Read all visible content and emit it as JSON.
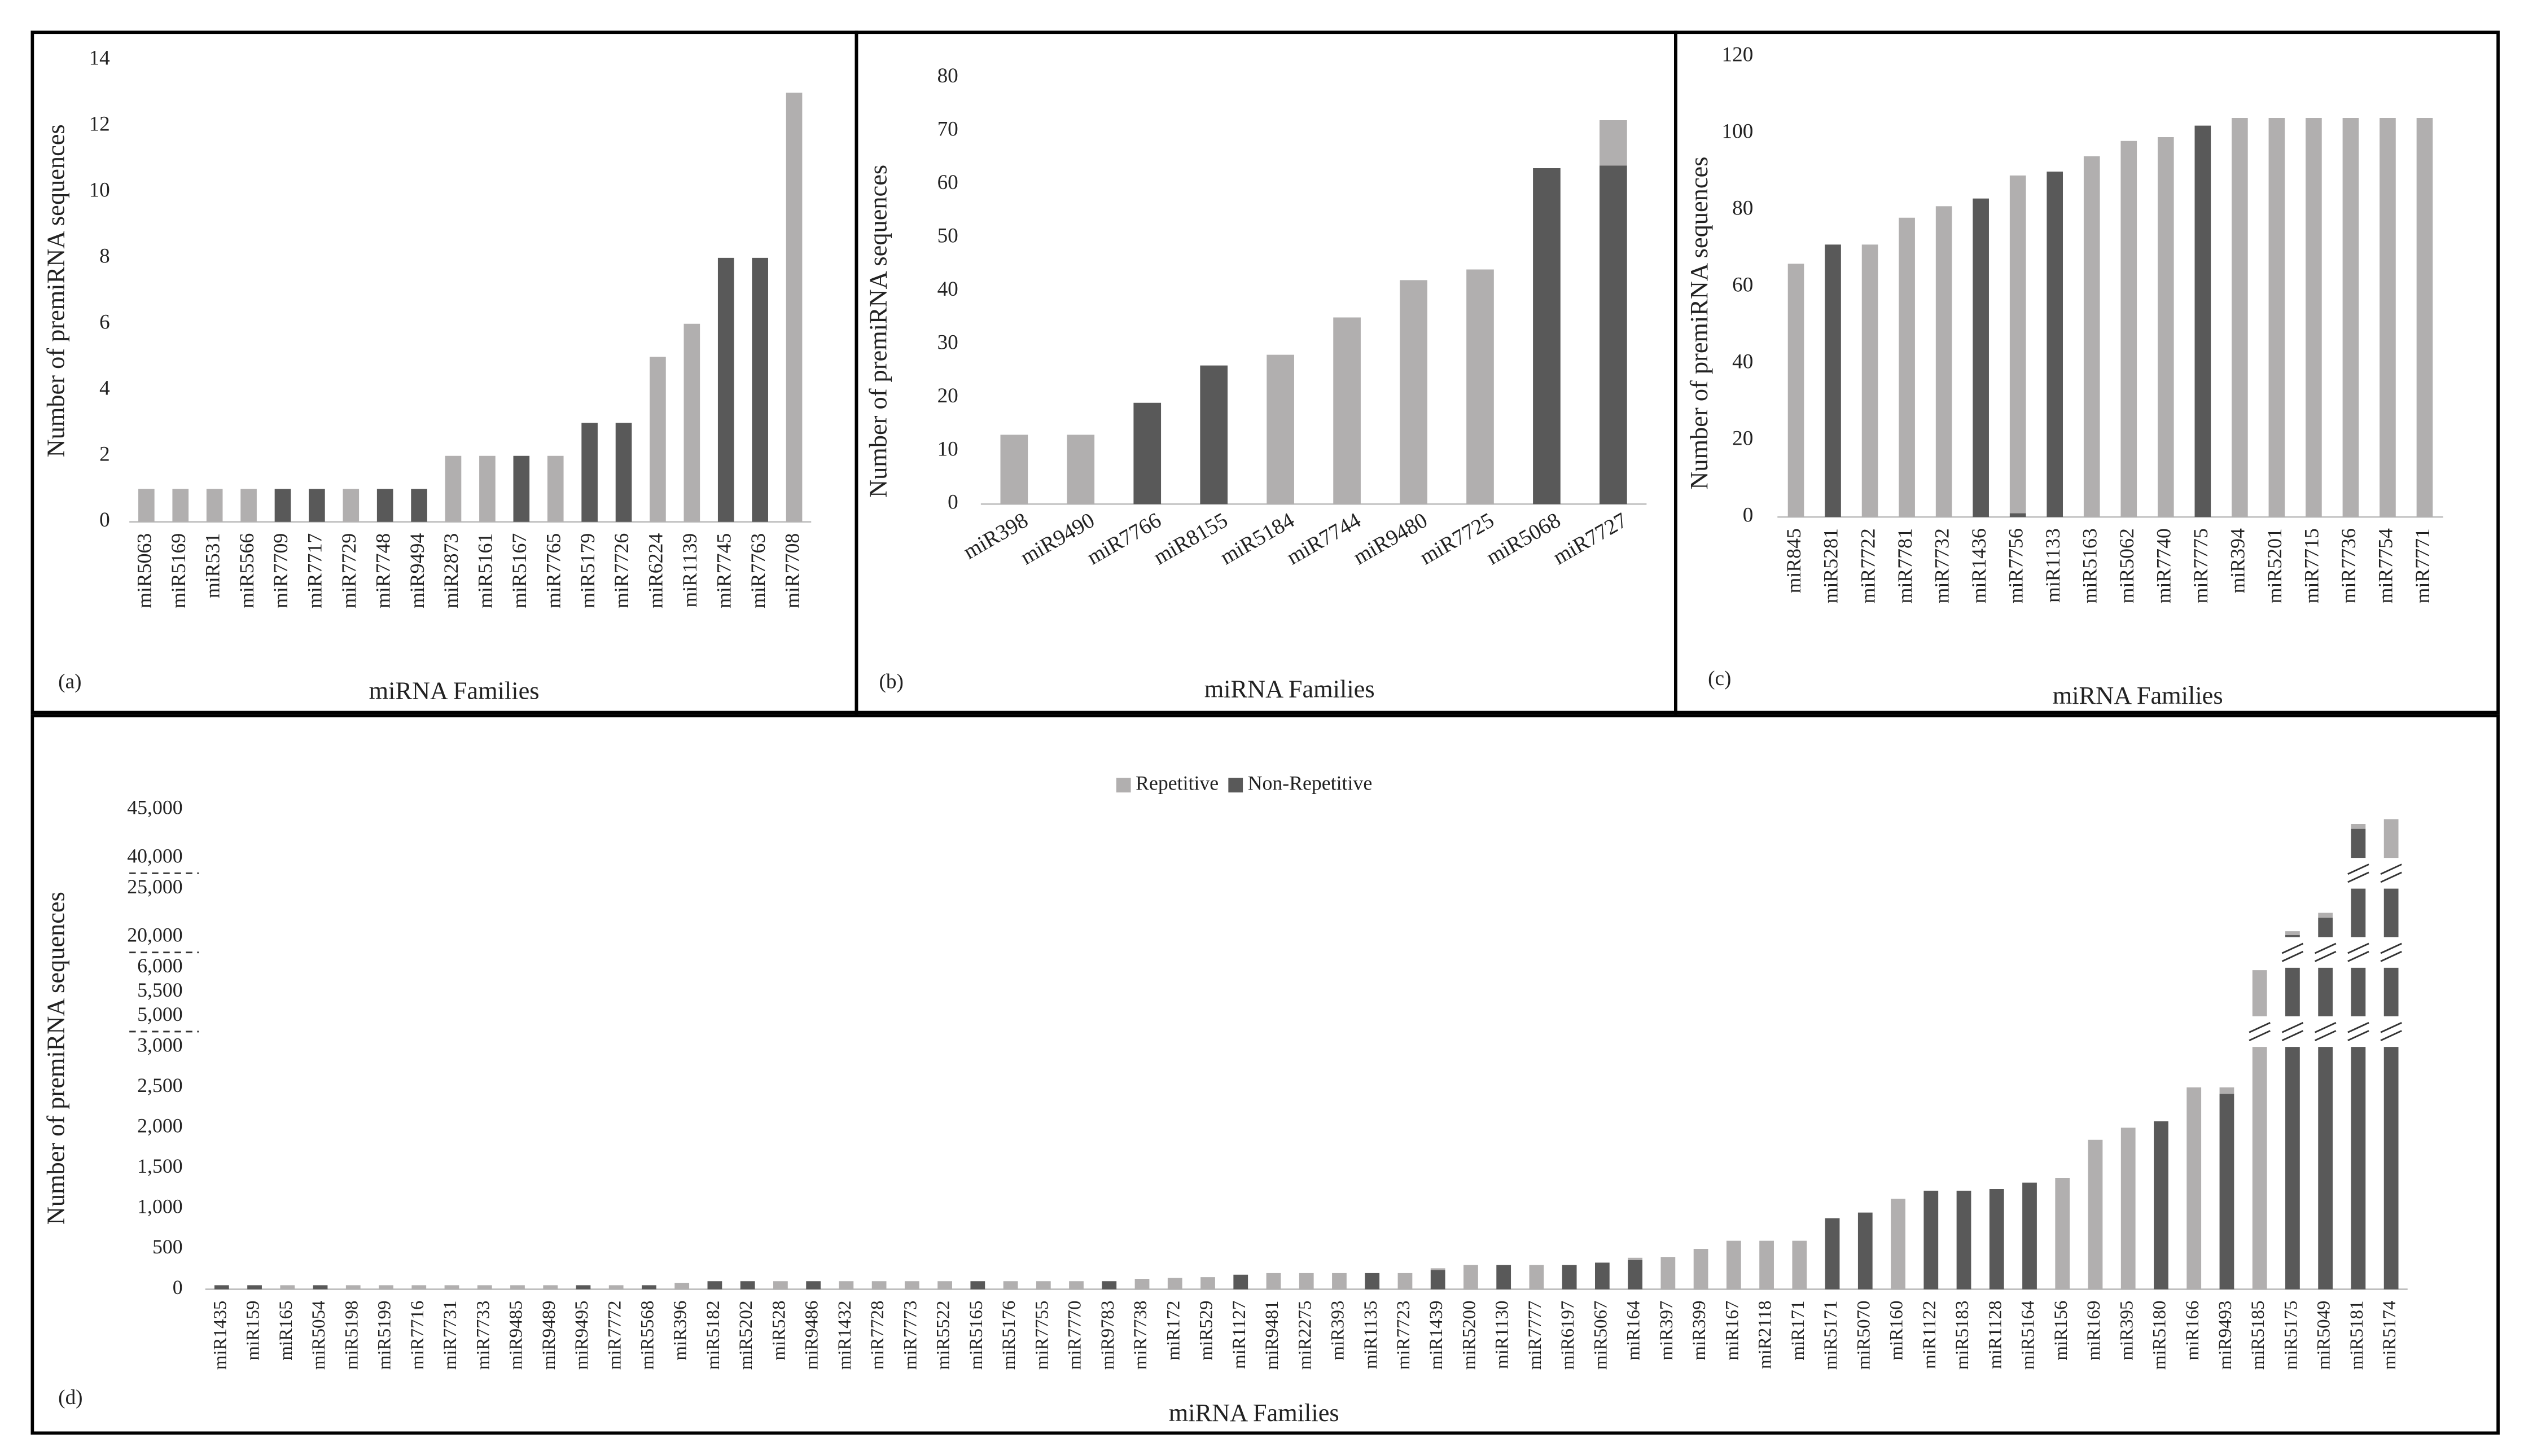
{
  "chart_data": [
    {
      "type": "bar",
      "panel_label": "(a)",
      "x_label": "miRNA Families",
      "y_label": "Number of premiRNA sequences",
      "categories": [
        "miR5063",
        "miR5169",
        "miR531",
        "miR5566",
        "miR7709",
        "miR7717",
        "miR7729",
        "miR7748",
        "miR9494",
        "miR2873",
        "miR5161",
        "miR5167",
        "miR7765",
        "miR5179",
        "miR7726",
        "miR6224",
        "miR1139",
        "miR7745",
        "miR7763",
        "miR7708"
      ],
      "series": [
        {
          "color": "#b1afaf",
          "values": [
            1,
            1,
            1,
            1,
            null,
            null,
            1,
            null,
            null,
            2,
            2,
            null,
            2,
            null,
            null,
            5,
            6,
            null,
            null,
            13
          ]
        },
        {
          "color": "#595959",
          "values": [
            null,
            null,
            null,
            null,
            1,
            1,
            null,
            1,
            1,
            null,
            null,
            2,
            null,
            3,
            3,
            null,
            null,
            8,
            8,
            null
          ]
        }
      ],
      "ylim": [
        0,
        14
      ],
      "yticks": [
        0,
        2,
        4,
        6,
        8,
        10,
        12,
        14
      ]
    },
    {
      "type": "bar",
      "panel_label": "(b)",
      "x_label": "miRNA Families",
      "y_label": "Number of premiRNA sequences",
      "categories": [
        "miR398",
        "miR9490",
        "miR7766",
        "miR8155",
        "miR5184",
        "miR7744",
        "miR9480",
        "miR7725",
        "miR5068",
        "miR7727"
      ],
      "series": [
        {
          "color": "#b1afaf",
          "values": [
            13,
            13,
            null,
            null,
            28,
            35,
            42,
            44,
            null,
            8.5
          ]
        },
        {
          "color": "#595959",
          "values": [
            null,
            null,
            19,
            26,
            null,
            null,
            null,
            null,
            63,
            63.5
          ]
        }
      ],
      "ylim": [
        0,
        80
      ],
      "yticks": [
        0,
        10,
        20,
        30,
        40,
        50,
        60,
        70,
        80
      ]
    },
    {
      "type": "bar",
      "panel_label": "(c)",
      "x_label": "miRNA Families",
      "y_label": "Number of premiRNA sequences",
      "categories": [
        "miR845",
        "miR5281",
        "miR7722",
        "miR7781",
        "miR7732",
        "miR1436",
        "miR7756",
        "miR1133",
        "miR5163",
        "miR5062",
        "miR7740",
        "miR7775",
        "miR394",
        "miR5201",
        "miR7715",
        "miR7736",
        "miR7754",
        "miR7771"
      ],
      "series": [
        {
          "color": "#b1afaf",
          "values": [
            66,
            null,
            71,
            78,
            81,
            null,
            88,
            null,
            94,
            98,
            99,
            null,
            104,
            104,
            104,
            104,
            104,
            104
          ]
        },
        {
          "color": "#595959",
          "values": [
            null,
            71,
            null,
            null,
            null,
            83,
            1,
            90,
            null,
            null,
            null,
            102,
            null,
            null,
            null,
            null,
            null,
            null
          ]
        }
      ],
      "ylim": [
        0,
        120
      ],
      "yticks": [
        0,
        20,
        40,
        60,
        80,
        100,
        120
      ]
    },
    {
      "type": "bar",
      "panel_label": "(d)",
      "x_label": "miRNA Families",
      "y_label": "Number of premiRNA sequences",
      "categories": [
        "miR1435",
        "miR159",
        "miR165",
        "miR5054",
        "miR5198",
        "miR5199",
        "miR7716",
        "miR7731",
        "miR7733",
        "miR9485",
        "miR9489",
        "miR9495",
        "miR7772",
        "miR5568",
        "miR396",
        "miR5182",
        "miR5202",
        "miR528",
        "miR9486",
        "miR1432",
        "miR7728",
        "miR7773",
        "miR5522",
        "miR5165",
        "miR5176",
        "miR7755",
        "miR7770",
        "miR9783",
        "miR7738",
        "miR172",
        "miR529",
        "miR1127",
        "miR9481",
        "miR2275",
        "miR393",
        "miR1135",
        "miR7723",
        "miR1439",
        "miR5200",
        "miR1130",
        "miR7777",
        "miR6197",
        "miR5067",
        "miR164",
        "miR397",
        "miR399",
        "miR167",
        "miR2118",
        "miR171",
        "miR5171",
        "miR5070",
        "miR160",
        "miR1122",
        "miR5183",
        "miR1128",
        "miR5164",
        "miR156",
        "miR169",
        "miR395",
        "miR5180",
        "miR166",
        "miR9493",
        "miR5185",
        "miR5175",
        "miR5049",
        "miR5181",
        "miR5174"
      ],
      "series": [
        {
          "name": "Repetitive",
          "color": "#b1afaf",
          "values": [
            null,
            null,
            50,
            null,
            50,
            50,
            50,
            50,
            50,
            50,
            50,
            null,
            50,
            null,
            80,
            null,
            null,
            100,
            null,
            100,
            100,
            100,
            100,
            null,
            100,
            100,
            100,
            null,
            130,
            140,
            150,
            null,
            200,
            200,
            200,
            null,
            200,
            20,
            300,
            null,
            300,
            null,
            null,
            30,
            400,
            500,
            600,
            600,
            600,
            null,
            null,
            1120,
            null,
            null,
            null,
            null,
            1380,
            1850,
            2000,
            null,
            2500,
            80,
            5950,
            400,
            500,
            500,
            4000
          ]
        },
        {
          "name": "Non-Repetitive",
          "color": "#595959",
          "values": [
            50,
            50,
            null,
            50,
            null,
            null,
            null,
            null,
            null,
            null,
            null,
            50,
            null,
            50,
            null,
            100,
            100,
            null,
            100,
            null,
            null,
            null,
            null,
            100,
            null,
            null,
            null,
            100,
            null,
            null,
            null,
            180,
            null,
            null,
            null,
            200,
            null,
            240,
            null,
            300,
            null,
            300,
            330,
            360,
            null,
            null,
            null,
            null,
            null,
            880,
            950,
            null,
            1220,
            1220,
            1240,
            1320,
            null,
            null,
            null,
            2080,
            null,
            2420,
            null,
            20200,
            22000,
            43000,
            40000
          ]
        }
      ],
      "ylim": [
        0,
        45000
      ],
      "yticks": [
        0,
        500,
        {
          "value": 1000,
          "label": "1,000"
        },
        {
          "value": 1500,
          "label": "1,500"
        },
        {
          "value": 2000,
          "label": "2,000"
        },
        {
          "value": 2500,
          "label": "2,500"
        },
        {
          "value": 3000,
          "label": "3,000"
        },
        {
          "value": 5000,
          "label": "5,000"
        },
        {
          "value": 5500,
          "label": "5,500"
        },
        {
          "value": 6000,
          "label": "6,000"
        },
        {
          "value": 20000,
          "label": "20,000"
        },
        {
          "value": 25000,
          "label": "25,000"
        },
        {
          "value": 40000,
          "label": "40,000"
        },
        {
          "value": 45000,
          "label": "45,000"
        }
      ],
      "axis_breaks": [
        [
          3000,
          5000
        ],
        [
          6000,
          20000
        ],
        [
          25000,
          40000
        ]
      ],
      "legend": "top"
    }
  ]
}
